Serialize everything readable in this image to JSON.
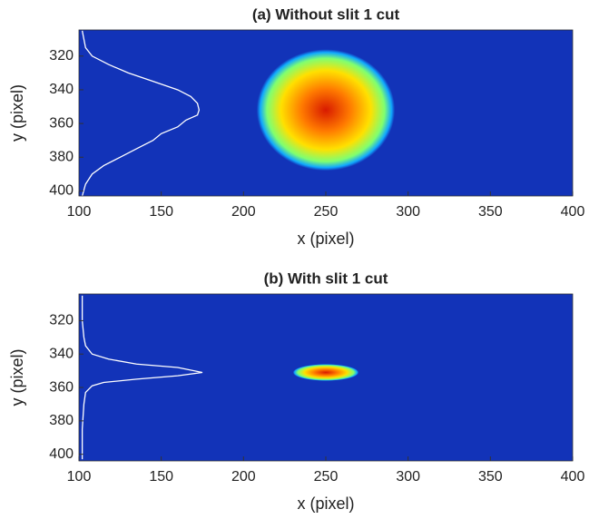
{
  "chart_data": [
    {
      "type": "image",
      "title": "(a) Without slit 1 cut",
      "xlabel": "x (pixel)",
      "ylabel": "y (pixel)",
      "xlim": [
        100,
        400
      ],
      "xticks": [
        100,
        150,
        200,
        250,
        300,
        350,
        400
      ],
      "ylim": [
        304.5,
        403
      ],
      "yticks": [
        320,
        340,
        360,
        380,
        400
      ],
      "y_reversed": true,
      "spot": {
        "cx": 250,
        "cy": 352,
        "rx": 42,
        "ry": 36
      },
      "profile": {
        "color": "#ffffff",
        "x": [
          102,
          104,
          108,
          118,
          130,
          145,
          160,
          168,
          172,
          173,
          172,
          165,
          160,
          150,
          145,
          135,
          125,
          115,
          108,
          104,
          102
        ],
        "y": [
          305,
          315,
          320,
          325,
          330,
          335,
          340,
          344,
          348,
          352,
          355,
          358,
          362,
          366,
          370,
          375,
          380,
          385,
          390,
          396,
          403
        ]
      }
    },
    {
      "type": "image",
      "title": "(b) With slit 1 cut",
      "xlabel": "x (pixel)",
      "ylabel": "y (pixel)",
      "xlim": [
        100,
        400
      ],
      "xticks": [
        100,
        150,
        200,
        250,
        300,
        350,
        400
      ],
      "ylim": [
        304,
        404
      ],
      "yticks": [
        320,
        340,
        360,
        380,
        400
      ],
      "y_reversed": true,
      "spot": {
        "cx": 250,
        "cy": 351,
        "rx": 20,
        "ry": 5
      },
      "profile": {
        "color": "#ffffff",
        "x": [
          102,
          102,
          103,
          104,
          108,
          118,
          135,
          160,
          175,
          160,
          135,
          115,
          108,
          104,
          103,
          102,
          102
        ],
        "y": [
          305,
          320,
          330,
          335,
          340,
          343,
          346,
          348,
          351,
          353,
          355,
          357,
          359,
          363,
          370,
          385,
          403
        ]
      }
    }
  ]
}
